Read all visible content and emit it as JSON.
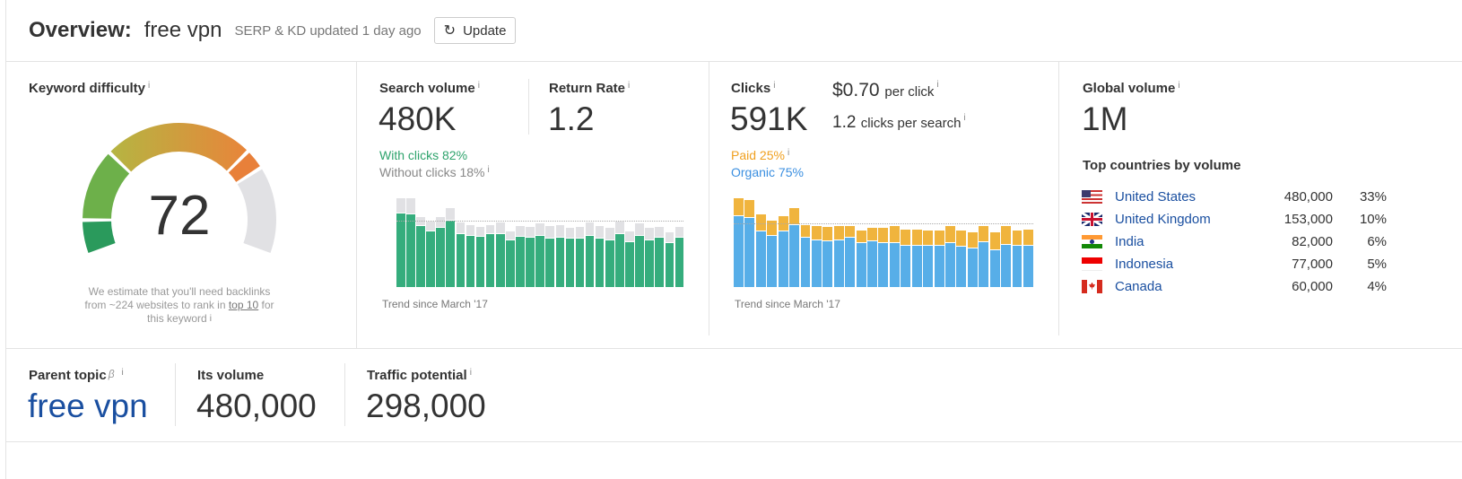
{
  "header": {
    "title": "Overview:",
    "keyword": "free vpn",
    "updated": "SERP & KD updated 1 day ago",
    "update_button": "Update"
  },
  "kd": {
    "label": "Keyword difficulty",
    "value": "72",
    "score": 72,
    "note_1": "We estimate that you'll need backlinks",
    "note_2a": "from ~224 websites to rank in ",
    "note_link": "top 10",
    "note_2b": " for",
    "note_3": "this keyword"
  },
  "search_volume": {
    "label": "Search volume",
    "value": "480K",
    "with_clicks": "With clicks 82%",
    "without_clicks": "Without clicks 18%",
    "trend": "Trend since March '17"
  },
  "return_rate": {
    "label": "Return Rate",
    "value": "1.2"
  },
  "clicks": {
    "label": "Clicks",
    "value": "591K",
    "cpc": "$0.70",
    "cpc_suffix": "per click",
    "cps": "1.2",
    "cps_suffix": "clicks per search",
    "paid": "Paid 25%",
    "organic": "Organic 75%",
    "trend": "Trend since March '17"
  },
  "global": {
    "label": "Global volume",
    "value": "1M",
    "countries_title": "Top countries by volume",
    "countries": [
      {
        "name": "United States",
        "volume": "480,000",
        "pct": "33%",
        "flag": "us"
      },
      {
        "name": "United Kingdom",
        "volume": "153,000",
        "pct": "10%",
        "flag": "uk"
      },
      {
        "name": "India",
        "volume": "82,000",
        "pct": "6%",
        "flag": "in"
      },
      {
        "name": "Indonesia",
        "volume": "77,000",
        "pct": "5%",
        "flag": "id"
      },
      {
        "name": "Canada",
        "volume": "60,000",
        "pct": "4%",
        "flag": "ca"
      }
    ]
  },
  "bottom": {
    "parent_label": "Parent topic",
    "beta": "β",
    "parent_value": "free vpn",
    "its_volume_label": "Its volume",
    "its_volume": "480,000",
    "tp_label": "Traffic potential",
    "tp_value": "298,000"
  },
  "colors": {
    "green": "#35ad7d",
    "gray": "#e1e1e4",
    "blue": "#57aee8",
    "orange": "#f0b43d",
    "link": "#1a4fa0"
  },
  "chart_data": [
    {
      "type": "bar",
      "title": "Search volume trend",
      "unit": "K",
      "ylim": [
        0,
        656
      ],
      "average": 480,
      "series": [
        {
          "name": "With clicks",
          "values": [
            538,
            530,
            443,
            408,
            434,
            484,
            386,
            377,
            368,
            386,
            386,
            344,
            368,
            360,
            375,
            353,
            360,
            353,
            353,
            377,
            353,
            344,
            386,
            329,
            377,
            344,
            360,
            320,
            360
          ]
        },
        {
          "name": "Total",
          "values": [
            650,
            650,
            512,
            480,
            512,
            578,
            475,
            453,
            440,
            453,
            473,
            408,
            447,
            440,
            464,
            447,
            453,
            432,
            440,
            473,
            447,
            432,
            480,
            408,
            464,
            432,
            440,
            399,
            440
          ]
        }
      ]
    },
    {
      "type": "bar",
      "title": "Clicks trend",
      "unit": "K",
      "ylim": [
        0,
        840
      ],
      "average": 591,
      "series": [
        {
          "name": "Organic",
          "values": [
            667,
            647,
            522,
            483,
            522,
            578,
            460,
            441,
            430,
            441,
            460,
            410,
            430,
            410,
            410,
            388,
            388,
            388,
            388,
            410,
            377,
            365,
            419,
            346,
            399,
            388,
            388
          ]
        },
        {
          "name": "Total",
          "values": [
            831,
            812,
            678,
            625,
            667,
            739,
            583,
            575,
            564,
            575,
            575,
            533,
            552,
            552,
            575,
            541,
            541,
            533,
            533,
            575,
            533,
            511,
            575,
            511,
            575,
            533,
            541
          ]
        }
      ]
    }
  ]
}
